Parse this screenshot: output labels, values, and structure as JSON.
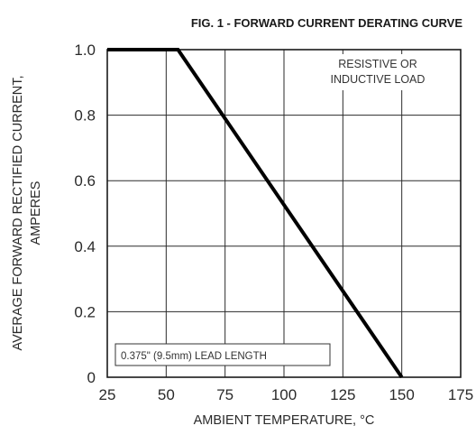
{
  "chart_data": {
    "type": "line",
    "title": "FIG. 1 - FORWARD CURRENT DERATING CURVE",
    "xlabel": "AMBIENT TEMPERATURE, °C",
    "ylabel_line1": "AVERAGE FORWARD RECTIFIED CURRENT,",
    "ylabel_line2": "AMPERES",
    "xlim": [
      25,
      175
    ],
    "ylim": [
      0,
      1.0
    ],
    "x_ticks": [
      25,
      50,
      75,
      100,
      125,
      150,
      175
    ],
    "x_tick_labels": [
      "25",
      "50",
      "75",
      "100",
      "125",
      "150",
      "175"
    ],
    "y_ticks": [
      0,
      0.2,
      0.4,
      0.6,
      0.8,
      1.0
    ],
    "y_tick_labels": [
      "0",
      "0.2",
      "0.4",
      "0.6",
      "0.8",
      "1.0"
    ],
    "grid": true,
    "series": [
      {
        "x": [
          25,
          55,
          150
        ],
        "y": [
          1.0,
          1.0,
          0
        ]
      }
    ],
    "annotations": {
      "load_line1": "RESISTIVE OR",
      "load_line2": "INDUCTIVE LOAD",
      "lead_length": "0.375\" (9.5mm) LEAD LENGTH"
    }
  }
}
